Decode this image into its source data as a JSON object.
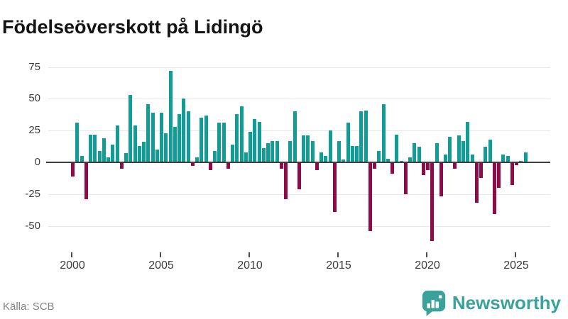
{
  "title": "Födelseöverskott på Lidingö",
  "footer": {
    "source": "Källa: SCB",
    "brand": "Newsworthy"
  },
  "colors": {
    "positive_bar": "#0f9d95",
    "negative_bar": "#8e0b48",
    "gridline": "#e7e7e7",
    "zero_axis": "#3d3d3d",
    "brand_teal": "#3aa29b",
    "axis_text": "#3c3c3c",
    "source_text": "#848484"
  },
  "chart_data": {
    "type": "bar",
    "title": "Födelseöverskott på Lidingö",
    "frequency": "quarterly",
    "start_year": 2000,
    "x_tick_labels": [
      "2000",
      "2005",
      "2010",
      "2015",
      "2020",
      "2025"
    ],
    "y_ticks": [
      75,
      50,
      25,
      0,
      -25,
      -50
    ],
    "ylim": [
      -68,
      80
    ],
    "grid": true,
    "legend": "none",
    "values": [
      -11,
      31,
      5,
      -29,
      22,
      22,
      9,
      19,
      4,
      14,
      29,
      -5,
      7,
      53,
      29,
      13,
      16,
      46,
      39,
      10,
      39,
      23,
      72,
      28,
      38,
      50,
      40,
      -3,
      4,
      35,
      37,
      -6,
      9,
      31,
      31,
      -5,
      14,
      38,
      44,
      8,
      24,
      34,
      32,
      11,
      15,
      17,
      17,
      -5,
      -29,
      17,
      40,
      -21,
      21,
      21,
      17,
      -6,
      8,
      5,
      25,
      -39,
      17,
      2,
      31,
      13,
      13,
      40,
      41,
      -54,
      -5,
      9,
      46,
      3,
      -9,
      22,
      1,
      -25,
      4,
      15,
      12,
      -10,
      -6,
      -62,
      15,
      -27,
      6,
      20,
      -5,
      21,
      17,
      32,
      6,
      -32,
      -12,
      12,
      18,
      -41,
      -20,
      6,
      5,
      -18,
      -2,
      1,
      8
    ]
  }
}
